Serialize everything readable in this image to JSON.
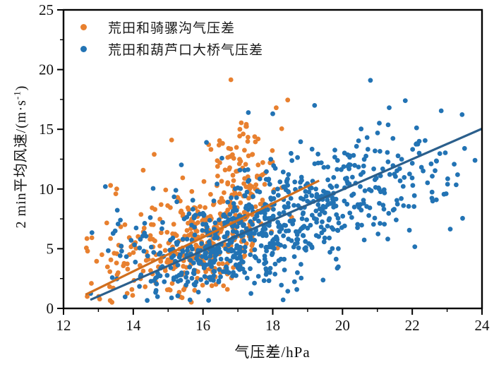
{
  "legend": {
    "items": [
      {
        "label": "荒田和骑骡沟气压差",
        "color": "#E8802F"
      },
      {
        "label": "荒田和葫芦口大桥气压差",
        "color": "#2273B4"
      }
    ]
  },
  "axes": {
    "xlabel": "气压差/hPa",
    "ylabel_pre": "2 min平均风速/(m·s",
    "ylabel_sup": "-1",
    "ylabel_post": ")",
    "ylabel_full": "2 min平均风速/(m·s⁻¹)"
  },
  "chart_data": {
    "type": "scatter",
    "title": "",
    "xlabel": "气压差/hPa",
    "ylabel": "2 min平均风速/(m·s⁻¹)",
    "xlim": [
      12,
      24
    ],
    "ylim": [
      0,
      25
    ],
    "x_major_ticks": [
      12,
      14,
      16,
      18,
      20,
      22,
      24
    ],
    "x_minor_step": 1,
    "y_major_ticks": [
      0,
      5,
      10,
      15,
      20,
      25
    ],
    "y_minor_step": 2.5,
    "grid": false,
    "legend_position": "upper-left",
    "frame_color": "#000000",
    "text_color": "#111111",
    "seed": 7,
    "series": [
      {
        "name": "荒田和骑骡沟气压差",
        "color": "#E8802F",
        "approx_point_count": 450,
        "x_range": [
          12.6,
          19.2
        ],
        "trendline": {
          "x1": 12.63,
          "y1": 1.15,
          "x2": 19.33,
          "y2": 10.7,
          "color": "#D06E1D",
          "slope": 1.43
        },
        "clusters": [
          {
            "n": 310,
            "x": {
              "mean": 16.35,
              "sd": 0.85,
              "min": 13.9,
              "max": 18.6
            },
            "y": {
              "slope": 1.42,
              "intercept": -16.8,
              "sd": 2.35,
              "min": 0.25,
              "max": 16.4
            }
          },
          {
            "n": 80,
            "x": {
              "mean": 14.25,
              "sd": 0.95,
              "min": 12.62,
              "max": 15.9
            },
            "y": {
              "slope": 0.85,
              "intercept": -7.1,
              "sd": 2.7,
              "min": 0.3,
              "max": 11.6
            }
          },
          {
            "n": 45,
            "x": {
              "mean": 17.05,
              "sd": 0.5,
              "min": 16.0,
              "max": 18.4
            },
            "y": {
              "slope": 0,
              "intercept": 12.3,
              "sd": 1.7,
              "min": 8.5,
              "max": 16.4
            }
          }
        ],
        "outlier_points": [
          [
            16.8,
            19.15
          ],
          [
            18.43,
            17.45
          ],
          [
            18.1,
            16.8
          ],
          [
            15.1,
            14.1
          ],
          [
            14.6,
            12.9
          ],
          [
            13.35,
            10.3
          ],
          [
            13.5,
            9.6
          ],
          [
            12.68,
            1.0
          ],
          [
            12.8,
            2.1
          ],
          [
            12.95,
            3.95
          ],
          [
            13.1,
            4.5
          ]
        ]
      },
      {
        "name": "荒田和葫芦口大桥气压差",
        "color": "#2273B4",
        "approx_point_count": 800,
        "x_range": [
          12.75,
          23.85
        ],
        "trendline": {
          "x1": 12.77,
          "y1": 0.72,
          "x2": 24.0,
          "y2": 15.05,
          "color": "#2B5F8C",
          "slope": 1.28
        },
        "clusters": [
          {
            "n": 520,
            "x": {
              "mean": 17.35,
              "sd": 1.25,
              "min": 14.2,
              "max": 20.3
            },
            "y": {
              "slope": 1.28,
              "intercept": -15.6,
              "sd": 2.35,
              "min": 0.2,
              "max": 15.3
            }
          },
          {
            "n": 175,
            "x": {
              "mean": 20.35,
              "sd": 1.0,
              "min": 18.6,
              "max": 23.2
            },
            "y": {
              "slope": 0.75,
              "intercept": -5.8,
              "sd": 2.3,
              "min": 1.0,
              "max": 17.2
            }
          },
          {
            "n": 24,
            "x": {
              "mean": 22.6,
              "sd": 0.75,
              "min": 21.4,
              "max": 23.85
            },
            "y": {
              "slope": 0,
              "intercept": 10.2,
              "sd": 3.0,
              "min": 3.6,
              "max": 16.6
            }
          },
          {
            "n": 60,
            "x": {
              "mean": 14.6,
              "sd": 1.0,
              "min": 12.8,
              "max": 16.0
            },
            "y": {
              "slope": 0,
              "intercept": 4.6,
              "sd": 2.6,
              "min": 0.3,
              "max": 13.5
            }
          }
        ],
        "outlier_points": [
          [
            20.8,
            19.1
          ],
          [
            21.8,
            17.4
          ],
          [
            22.83,
            16.55
          ],
          [
            22.2,
            14.0
          ],
          [
            23.5,
            13.4
          ],
          [
            23.8,
            12.4
          ],
          [
            22.2,
            13.0
          ],
          [
            23.3,
            11.2
          ],
          [
            19.2,
            17.0
          ],
          [
            18.0,
            16.3
          ],
          [
            17.3,
            16.4
          ],
          [
            16.1,
            13.9
          ],
          [
            13.2,
            10.2
          ],
          [
            12.78,
            1.25
          ]
        ]
      }
    ]
  }
}
